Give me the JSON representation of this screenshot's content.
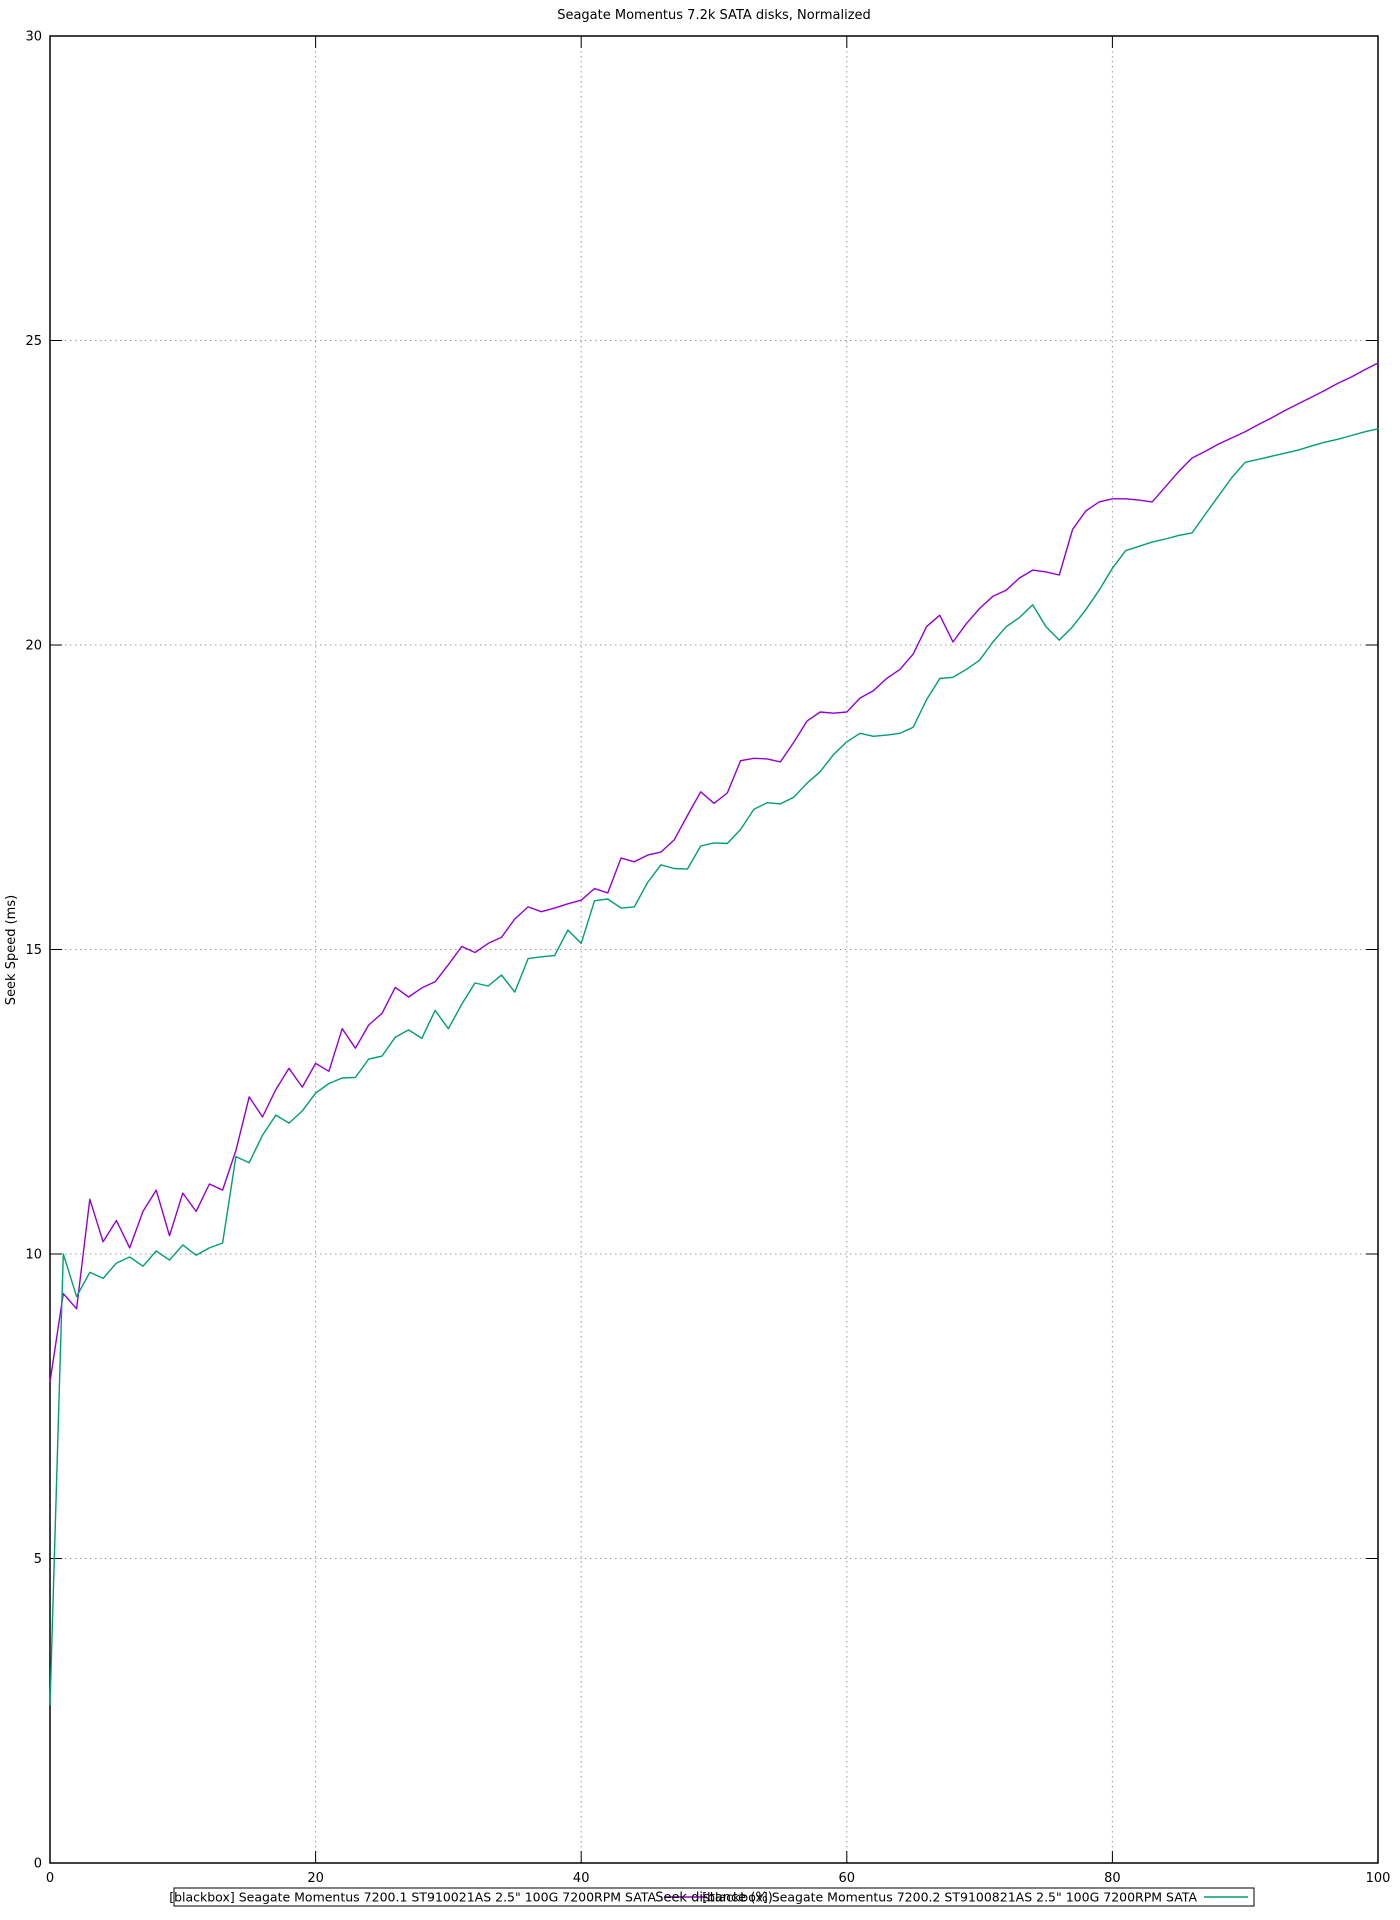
{
  "page": {
    "background": "#ffffff"
  },
  "chart_data": {
    "type": "line",
    "title": "Seagate Momentus 7.2k SATA disks, Normalized",
    "xlabel": "Seek distance (%)",
    "ylabel": "Seek Speed (ms)",
    "xlim": [
      0,
      100
    ],
    "ylim": [
      0,
      30
    ],
    "x_ticks": [
      0,
      20,
      40,
      60,
      80,
      100
    ],
    "y_ticks": [
      0,
      5,
      10,
      15,
      20,
      25,
      30
    ],
    "grid": true,
    "grid_color": "#9a9a9a",
    "axis_color": "#000000",
    "legend_position": "bottom",
    "x": [
      0,
      1,
      2,
      3,
      4,
      5,
      6,
      7,
      8,
      9,
      10,
      11,
      12,
      13,
      14,
      15,
      16,
      17,
      18,
      19,
      20,
      21,
      22,
      23,
      24,
      25,
      26,
      27,
      28,
      29,
      30,
      31,
      32,
      33,
      34,
      35,
      36,
      37,
      38,
      39,
      40,
      41,
      42,
      43,
      44,
      45,
      46,
      47,
      48,
      49,
      50,
      51,
      52,
      53,
      54,
      55,
      56,
      57,
      58,
      59,
      60,
      61,
      62,
      63,
      64,
      65,
      66,
      67,
      68,
      69,
      70,
      71,
      72,
      73,
      74,
      75,
      76,
      77,
      78,
      79,
      80,
      81,
      82,
      83,
      84,
      85,
      86,
      87,
      88,
      89,
      90,
      91,
      92,
      93,
      94,
      95,
      96,
      97,
      98,
      99,
      100
    ],
    "series": [
      {
        "name": "[blackbox] Seagate Momentus 7200.1 ST910021AS 2.5\" 100G 7200RPM SATA",
        "color": "#9400d3",
        "values": [
          7.9,
          9.35,
          9.1,
          10.9,
          10.2,
          10.55,
          10.1,
          10.7,
          11.05,
          10.3,
          11.0,
          10.7,
          11.15,
          11.05,
          11.7,
          12.58,
          12.25,
          12.7,
          13.05,
          12.74,
          13.13,
          13.0,
          13.7,
          13.38,
          13.76,
          13.95,
          14.38,
          14.22,
          14.37,
          14.47,
          14.75,
          15.05,
          14.95,
          15.1,
          15.2,
          15.5,
          15.7,
          15.62,
          15.68,
          15.75,
          15.81,
          16.0,
          15.93,
          16.5,
          16.44,
          16.55,
          16.6,
          16.8,
          17.2,
          17.59,
          17.4,
          17.57,
          18.1,
          18.14,
          18.13,
          18.08,
          18.4,
          18.75,
          18.9,
          18.88,
          18.9,
          19.13,
          19.25,
          19.45,
          19.6,
          19.85,
          20.3,
          20.49,
          20.05,
          20.35,
          20.6,
          20.8,
          20.9,
          21.1,
          21.23,
          21.2,
          21.15,
          21.9,
          22.2,
          22.35,
          22.4,
          22.4,
          22.38,
          22.35,
          22.6,
          22.85,
          23.07,
          23.18,
          23.3,
          23.4,
          23.5,
          23.62,
          23.73,
          23.85,
          23.96,
          24.07,
          24.18,
          24.3,
          24.4,
          24.52,
          24.63
        ]
      },
      {
        "name": "[blackbox] Seagate Momentus 7200.2 ST9100821AS 2.5\" 100G 7200RPM SATA",
        "color": "#009e73",
        "values": [
          2.6,
          10.0,
          9.3,
          9.7,
          9.6,
          9.85,
          9.95,
          9.8,
          10.05,
          9.9,
          10.15,
          9.98,
          10.1,
          10.18,
          11.6,
          11.5,
          11.95,
          12.28,
          12.15,
          12.35,
          12.64,
          12.8,
          12.89,
          12.9,
          13.2,
          13.25,
          13.56,
          13.68,
          13.54,
          14.0,
          13.7,
          14.1,
          14.45,
          14.4,
          14.58,
          14.3,
          14.85,
          14.88,
          14.9,
          15.32,
          15.1,
          15.8,
          15.83,
          15.68,
          15.7,
          16.1,
          16.39,
          16.33,
          16.32,
          16.7,
          16.75,
          16.74,
          16.97,
          17.3,
          17.41,
          17.39,
          17.5,
          17.73,
          17.92,
          18.2,
          18.41,
          18.55,
          18.5,
          18.52,
          18.55,
          18.65,
          19.1,
          19.45,
          19.47,
          19.6,
          19.75,
          20.05,
          20.3,
          20.45,
          20.66,
          20.3,
          20.08,
          20.3,
          20.58,
          20.9,
          21.26,
          21.55,
          21.62,
          21.69,
          21.74,
          21.8,
          21.84,
          22.15,
          22.45,
          22.75,
          23.0,
          23.05,
          23.1,
          23.15,
          23.2,
          23.27,
          23.33,
          23.38,
          23.44,
          23.5,
          23.55
        ]
      }
    ]
  }
}
